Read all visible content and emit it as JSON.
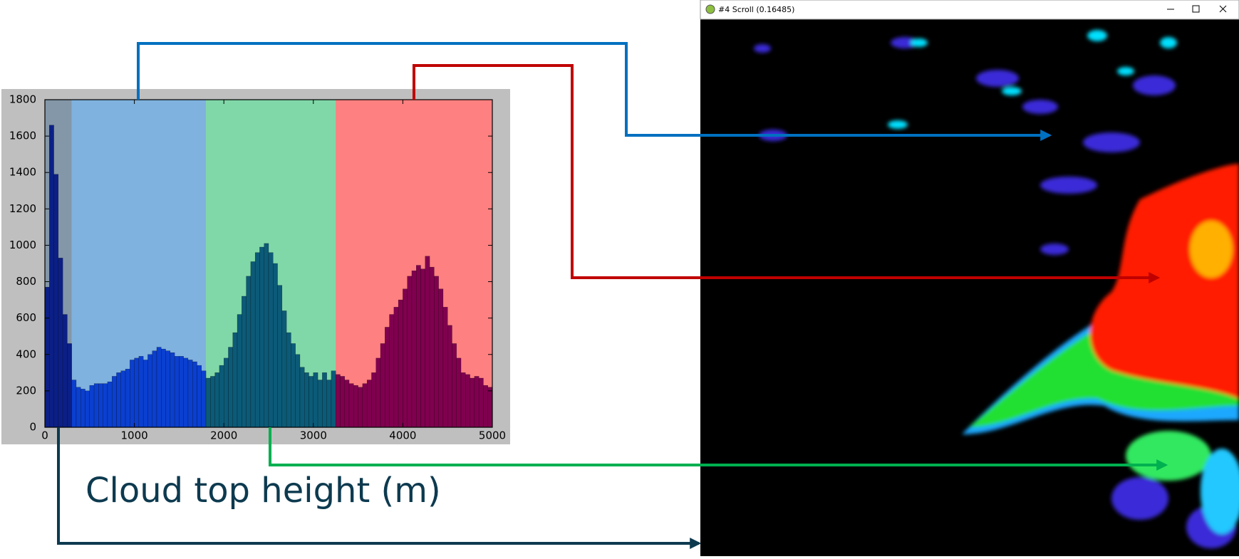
{
  "chart_data": {
    "type": "histogram",
    "xlabel": "Cloud top height (m)",
    "bins": [
      0,
      50,
      100,
      150,
      200,
      250,
      300,
      350,
      400,
      450,
      500,
      550,
      600,
      650,
      700,
      750,
      800,
      850,
      900,
      950,
      1000,
      1050,
      1100,
      1150,
      1200,
      1250,
      1300,
      1350,
      1400,
      1450,
      1500,
      1550,
      1600,
      1650,
      1700,
      1750,
      1800,
      1850,
      1900,
      1950,
      2000,
      2050,
      2100,
      2150,
      2200,
      2250,
      2300,
      2350,
      2400,
      2450,
      2500,
      2550,
      2600,
      2650,
      2700,
      2750,
      2800,
      2850,
      2900,
      2950,
      3000,
      3050,
      3100,
      3150,
      3200,
      3250,
      3300,
      3350,
      3400,
      3450,
      3500,
      3550,
      3600,
      3650,
      3700,
      3750,
      3800,
      3850,
      3900,
      3950,
      4000,
      4050,
      4100,
      4150,
      4200,
      4250,
      4300,
      4350,
      4400,
      4450,
      4500,
      4550,
      4600,
      4650,
      4700,
      4750,
      4800,
      4850,
      4900,
      4950,
      5000
    ],
    "values": [
      770,
      1660,
      1390,
      930,
      620,
      460,
      260,
      220,
      210,
      200,
      230,
      240,
      240,
      240,
      250,
      280,
      300,
      310,
      320,
      370,
      380,
      390,
      370,
      400,
      420,
      440,
      430,
      420,
      410,
      390,
      390,
      380,
      370,
      360,
      340,
      310,
      270,
      280,
      300,
      340,
      380,
      440,
      520,
      620,
      720,
      830,
      910,
      960,
      990,
      1010,
      960,
      900,
      780,
      640,
      520,
      460,
      400,
      330,
      300,
      280,
      300,
      260,
      300,
      260,
      310,
      290,
      280,
      260,
      240,
      230,
      220,
      240,
      260,
      300,
      380,
      460,
      550,
      620,
      660,
      700,
      760,
      830,
      860,
      890,
      870,
      940,
      880,
      830,
      760,
      660,
      560,
      460,
      380,
      300,
      290,
      270,
      280,
      270,
      230,
      220
    ],
    "bands": [
      {
        "from": 0,
        "to": 300,
        "color": "#8397a8",
        "bar_color": "#0b1f86"
      },
      {
        "from": 300,
        "to": 1800,
        "color": "#7fb2de",
        "bar_color": "#0a3fd0"
      },
      {
        "from": 1800,
        "to": 3250,
        "color": "#80d8a8",
        "bar_color": "#0b5a78"
      },
      {
        "from": 3250,
        "to": 5000,
        "color": "#ff8080",
        "bar_color": "#80004f"
      }
    ],
    "xlim": [
      0,
      5000
    ],
    "ylim": [
      0,
      1800
    ],
    "xticks": [
      0,
      1000,
      2000,
      3000,
      4000,
      5000
    ],
    "yticks": [
      0,
      200,
      400,
      600,
      800,
      1000,
      1200,
      1400,
      1600,
      1800
    ]
  },
  "window": {
    "title": "#4 Scroll (0.16485)"
  }
}
